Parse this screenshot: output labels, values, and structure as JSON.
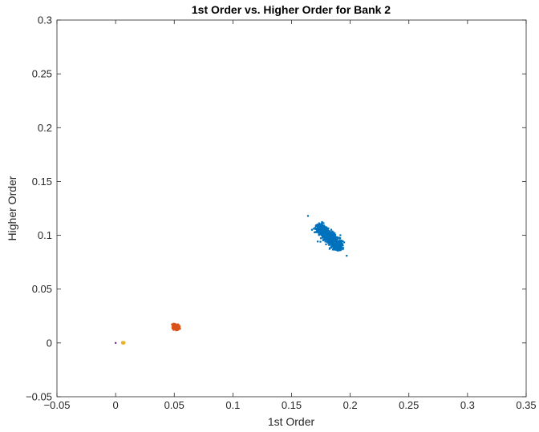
{
  "chart_data": {
    "type": "scatter",
    "title": "1st Order vs. Higher Order for Bank 2",
    "xlabel": "1st Order",
    "ylabel": "Higher Order",
    "xlim": [
      -0.05,
      0.35
    ],
    "ylim": [
      -0.05,
      0.3
    ],
    "xticks": [
      "−0.05",
      "0",
      "0.05",
      "0.1",
      "0.15",
      "0.2",
      "0.25",
      "0.3",
      "0.35"
    ],
    "yticks": [
      "−0.05",
      "0",
      "0.05",
      "0.1",
      "0.15",
      "0.2",
      "0.25",
      "0.3"
    ],
    "grid": false,
    "legend": "none",
    "series": [
      {
        "color": "#0072BD",
        "cluster": {
          "center": [
            0.182,
            0.0985
          ],
          "slope": -1.11,
          "along_halfwidth": 0.017,
          "across_sd": 0.0025,
          "count": 700
        },
        "points": [
          [
            0.164,
            0.118
          ],
          [
            0.197,
            0.081
          ],
          [
            0.172,
            0.11
          ],
          [
            0.19,
            0.087
          ],
          [
            0.178,
            0.104
          ],
          [
            0.186,
            0.095
          ]
        ]
      },
      {
        "color": "#D95319",
        "cluster": {
          "center": [
            0.0515,
            0.0148
          ],
          "slope": -0.3,
          "along_halfwidth": 0.0035,
          "across_sd": 0.0012,
          "count": 300
        },
        "points": [
          [
            0.048,
            0.0172
          ],
          [
            0.055,
            0.0132
          ],
          [
            0.05,
            0.016
          ],
          [
            0.053,
            0.014
          ]
        ]
      },
      {
        "color": "#EDB120",
        "cluster": {
          "center": [
            0.0065,
            0.0002
          ],
          "slope": 0,
          "along_halfwidth": 0.0012,
          "across_sd": 0.0003,
          "count": 50
        },
        "points": [
          [
            0.0055,
            0.0003
          ],
          [
            0.0075,
            0.0
          ]
        ]
      },
      {
        "color": "#7E2F8E",
        "points": [
          [
            0.0,
            0.0
          ]
        ]
      }
    ]
  }
}
